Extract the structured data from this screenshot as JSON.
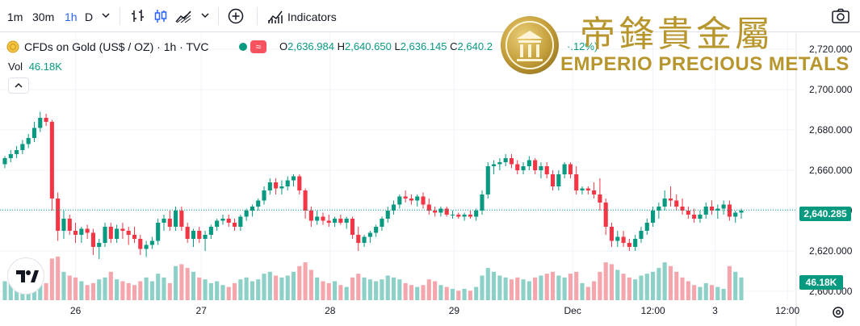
{
  "toolbar": {
    "intervals": [
      "1m",
      "30m",
      "1h",
      "D"
    ],
    "active_interval": "1h",
    "indicators_label": "Indicators"
  },
  "legend": {
    "symbol": "CFDs on Gold (US$ / OZ) · 1h · TVC",
    "wave_glyph": "≈",
    "open_key": "O",
    "open": "2,636.984",
    "high_key": "H",
    "high": "2,640.650",
    "low_key": "L",
    "low": "2,636.145",
    "close_key": "C",
    "close": "2,640.2",
    "change_frag": "·.12%)",
    "vol_key": "Vol",
    "vol_value": "46.18K"
  },
  "watermark": {
    "chinese": "帝鋒貴金屬",
    "english": "EMPERIO PRECIOUS METALS"
  },
  "badges": {
    "last_price": "2,640.285",
    "last_volume": "46.18K"
  },
  "colors": {
    "up": "#089981",
    "down": "#f23645",
    "up_vol": "#8dd0c7",
    "down_vol": "#f5a6ad",
    "brand_gold": "#b8962e"
  },
  "chart_data": {
    "type": "candlestick",
    "title": "CFDs on Gold (US$ / OZ)",
    "interval": "1h",
    "y_axis": {
      "ticks": [
        "2,720.000",
        "2,700.000",
        "2,680.000",
        "2,660.000",
        "2,640.000",
        "2,620.000",
        "2,600.000"
      ],
      "range": [
        2596,
        2728
      ]
    },
    "x_axis": {
      "ticks": [
        "26",
        "27",
        "28",
        "29",
        "Dec",
        "12:00",
        "3",
        "12:00"
      ]
    },
    "last_price": 2640.285,
    "volume_range": [
      0,
      52
    ],
    "candles": [
      [
        2663,
        2667,
        2661,
        2666,
        20
      ],
      [
        2666,
        2670,
        2664,
        2668,
        18
      ],
      [
        2668,
        2672,
        2666,
        2670,
        16
      ],
      [
        2670,
        2675,
        2668,
        2673,
        14
      ],
      [
        2673,
        2678,
        2671,
        2676,
        22
      ],
      [
        2676,
        2684,
        2674,
        2681,
        20
      ],
      [
        2681,
        2689,
        2679,
        2686,
        24
      ],
      [
        2686,
        2688,
        2682,
        2684,
        18
      ],
      [
        2684,
        2685,
        2640,
        2646,
        44
      ],
      [
        2646,
        2649,
        2625,
        2630,
        46
      ],
      [
        2630,
        2640,
        2626,
        2636,
        30
      ],
      [
        2636,
        2638,
        2628,
        2630,
        26
      ],
      [
        2630,
        2634,
        2624,
        2628,
        24
      ],
      [
        2628,
        2632,
        2624,
        2631,
        20
      ],
      [
        2631,
        2633,
        2626,
        2629,
        16
      ],
      [
        2629,
        2631,
        2618,
        2622,
        18
      ],
      [
        2622,
        2626,
        2616,
        2624,
        22
      ],
      [
        2624,
        2634,
        2622,
        2632,
        24
      ],
      [
        2632,
        2634,
        2624,
        2626,
        30
      ],
      [
        2626,
        2633,
        2624,
        2631,
        22
      ],
      [
        2631,
        2634,
        2626,
        2630,
        20
      ],
      [
        2630,
        2632,
        2623,
        2628,
        18
      ],
      [
        2628,
        2632,
        2624,
        2626,
        16
      ],
      [
        2626,
        2628,
        2618,
        2621,
        20
      ],
      [
        2621,
        2625,
        2617,
        2623,
        24
      ],
      [
        2623,
        2627,
        2621,
        2625,
        20
      ],
      [
        2625,
        2636,
        2623,
        2634,
        28
      ],
      [
        2634,
        2638,
        2630,
        2636,
        24
      ],
      [
        2636,
        2640,
        2630,
        2632,
        18
      ],
      [
        2632,
        2642,
        2630,
        2640,
        36
      ],
      [
        2640,
        2642,
        2630,
        2632,
        38
      ],
      [
        2632,
        2634,
        2624,
        2626,
        34
      ],
      [
        2626,
        2631,
        2622,
        2630,
        30
      ],
      [
        2630,
        2632,
        2624,
        2626,
        24
      ],
      [
        2626,
        2630,
        2620,
        2628,
        22
      ],
      [
        2628,
        2633,
        2626,
        2632,
        18
      ],
      [
        2632,
        2636,
        2630,
        2635,
        20
      ],
      [
        2635,
        2638,
        2633,
        2636,
        16
      ],
      [
        2636,
        2638,
        2632,
        2634,
        14
      ],
      [
        2634,
        2636,
        2630,
        2632,
        18
      ],
      [
        2632,
        2638,
        2630,
        2637,
        22
      ],
      [
        2637,
        2641,
        2635,
        2640,
        24
      ],
      [
        2640,
        2643,
        2637,
        2642,
        20
      ],
      [
        2642,
        2646,
        2640,
        2645,
        22
      ],
      [
        2645,
        2652,
        2643,
        2650,
        28
      ],
      [
        2650,
        2656,
        2648,
        2654,
        30
      ],
      [
        2654,
        2656,
        2648,
        2651,
        26
      ],
      [
        2651,
        2655,
        2648,
        2652,
        24
      ],
      [
        2652,
        2657,
        2650,
        2655,
        26
      ],
      [
        2655,
        2658,
        2652,
        2657,
        30
      ],
      [
        2657,
        2658,
        2648,
        2650,
        36
      ],
      [
        2650,
        2651,
        2636,
        2640,
        40
      ],
      [
        2640,
        2642,
        2632,
        2635,
        32
      ],
      [
        2635,
        2640,
        2633,
        2637,
        24
      ],
      [
        2637,
        2639,
        2633,
        2635,
        20
      ],
      [
        2635,
        2638,
        2632,
        2634,
        18
      ],
      [
        2634,
        2637,
        2632,
        2636,
        20
      ],
      [
        2636,
        2638,
        2633,
        2634,
        16
      ],
      [
        2634,
        2637,
        2631,
        2636,
        14
      ],
      [
        2636,
        2637,
        2626,
        2628,
        24
      ],
      [
        2628,
        2632,
        2620,
        2624,
        28
      ],
      [
        2624,
        2628,
        2622,
        2627,
        24
      ],
      [
        2627,
        2630,
        2624,
        2629,
        22
      ],
      [
        2629,
        2633,
        2627,
        2632,
        20
      ],
      [
        2632,
        2637,
        2630,
        2636,
        22
      ],
      [
        2636,
        2642,
        2634,
        2640,
        26
      ],
      [
        2640,
        2645,
        2638,
        2643,
        24
      ],
      [
        2643,
        2648,
        2641,
        2647,
        22
      ],
      [
        2647,
        2650,
        2644,
        2646,
        18
      ],
      [
        2646,
        2648,
        2643,
        2645,
        16
      ],
      [
        2645,
        2648,
        2642,
        2647,
        14
      ],
      [
        2647,
        2649,
        2641,
        2643,
        16
      ],
      [
        2643,
        2646,
        2638,
        2640,
        22
      ],
      [
        2640,
        2642,
        2637,
        2639,
        20
      ],
      [
        2639,
        2642,
        2637,
        2641,
        16
      ],
      [
        2641,
        2642,
        2637,
        2638,
        14
      ],
      [
        2638,
        2640,
        2636,
        2638,
        12
      ],
      [
        2638,
        2639,
        2636,
        2637,
        10
      ],
      [
        2637,
        2639,
        2635,
        2638,
        12
      ],
      [
        2638,
        2640,
        2636,
        2637,
        10
      ],
      [
        2637,
        2641,
        2635,
        2640,
        14
      ],
      [
        2640,
        2650,
        2638,
        2648,
        26
      ],
      [
        2648,
        2664,
        2646,
        2662,
        34
      ],
      [
        2662,
        2665,
        2658,
        2663,
        30
      ],
      [
        2663,
        2666,
        2660,
        2664,
        26
      ],
      [
        2664,
        2668,
        2662,
        2666,
        24
      ],
      [
        2666,
        2668,
        2661,
        2663,
        22
      ],
      [
        2663,
        2665,
        2658,
        2660,
        24
      ],
      [
        2660,
        2664,
        2658,
        2662,
        22
      ],
      [
        2662,
        2667,
        2660,
        2665,
        20
      ],
      [
        2665,
        2666,
        2658,
        2660,
        24
      ],
      [
        2660,
        2664,
        2656,
        2662,
        26
      ],
      [
        2662,
        2664,
        2656,
        2658,
        28
      ],
      [
        2658,
        2660,
        2650,
        2652,
        30
      ],
      [
        2652,
        2660,
        2650,
        2658,
        26
      ],
      [
        2658,
        2664,
        2656,
        2663,
        24
      ],
      [
        2663,
        2664,
        2656,
        2658,
        28
      ],
      [
        2658,
        2662,
        2648,
        2650,
        30
      ],
      [
        2650,
        2652,
        2648,
        2651,
        18
      ],
      [
        2651,
        2652,
        2648,
        2650,
        14
      ],
      [
        2650,
        2654,
        2646,
        2648,
        20
      ],
      [
        2648,
        2656,
        2640,
        2644,
        30
      ],
      [
        2644,
        2646,
        2628,
        2632,
        40
      ],
      [
        2632,
        2634,
        2622,
        2625,
        38
      ],
      [
        2625,
        2630,
        2622,
        2627,
        32
      ],
      [
        2627,
        2630,
        2622,
        2624,
        28
      ],
      [
        2624,
        2626,
        2620,
        2622,
        24
      ],
      [
        2622,
        2628,
        2620,
        2626,
        22
      ],
      [
        2626,
        2632,
        2624,
        2630,
        26
      ],
      [
        2630,
        2636,
        2628,
        2634,
        28
      ],
      [
        2634,
        2642,
        2632,
        2640,
        30
      ],
      [
        2640,
        2644,
        2636,
        2642,
        34
      ],
      [
        2642,
        2650,
        2640,
        2646,
        40
      ],
      [
        2646,
        2652,
        2642,
        2645,
        36
      ],
      [
        2645,
        2648,
        2640,
        2642,
        30
      ],
      [
        2642,
        2646,
        2638,
        2640,
        24
      ],
      [
        2640,
        2642,
        2636,
        2638,
        20
      ],
      [
        2638,
        2641,
        2634,
        2636,
        16
      ],
      [
        2636,
        2640,
        2634,
        2638,
        14
      ],
      [
        2638,
        2644,
        2636,
        2642,
        18
      ],
      [
        2642,
        2645,
        2638,
        2640,
        16
      ],
      [
        2640,
        2643,
        2636,
        2641,
        14
      ],
      [
        2641,
        2645,
        2638,
        2643,
        12
      ],
      [
        2643,
        2645,
        2635,
        2637,
        36
      ],
      [
        2637,
        2640,
        2634,
        2639,
        30
      ],
      [
        2639,
        2641,
        2636,
        2640,
        24
      ]
    ]
  }
}
